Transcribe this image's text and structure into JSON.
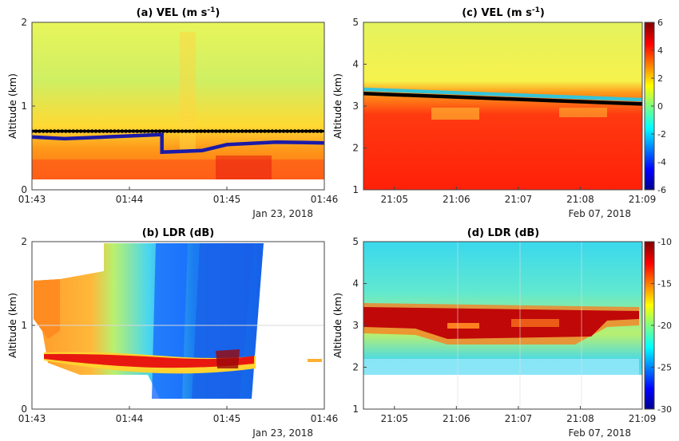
{
  "chart_data": [
    {
      "id": "a",
      "type": "heatmap",
      "title": "(a) VEL (m s",
      "title_sup": "-1",
      "title_close": ")",
      "ylabel": "Altitude (km)",
      "date_label": "Jan 23, 2018",
      "xlim": [
        "01:43",
        "01:46"
      ],
      "ylim": [
        0,
        2
      ],
      "xticks": [
        "01:43",
        "01:44",
        "01:45",
        "01:46"
      ],
      "yticks": [
        "0",
        "1",
        "2"
      ],
      "lines": [
        {
          "color": "#000000",
          "x": [
            "01:43",
            "01:43:30",
            "01:44",
            "01:44:30",
            "01:45",
            "01:45:30",
            "01:46"
          ],
          "y": [
            0.7,
            0.7,
            0.7,
            0.7,
            0.7,
            0.7,
            0.7
          ]
        },
        {
          "color": "#1a1aa8",
          "x": [
            "01:43",
            "01:43:20",
            "01:43:45",
            "01:44:20",
            "01:44:20",
            "01:44:45",
            "01:45",
            "01:45:30",
            "01:46"
          ],
          "y": [
            0.63,
            0.61,
            0.63,
            0.66,
            0.45,
            0.47,
            0.54,
            0.57,
            0.56
          ]
        }
      ]
    },
    {
      "id": "c",
      "type": "heatmap",
      "title": "(c) VEL (m s",
      "title_sup": "-1",
      "title_close": ")",
      "ylabel": "Altitude (km)",
      "date_label": "Feb 07, 2018",
      "xlim": [
        "21:04:30",
        "21:09"
      ],
      "ylim": [
        1,
        5
      ],
      "xticks": [
        "21:05",
        "21:06",
        "21:07",
        "21:08",
        "21:09"
      ],
      "yticks": [
        "1",
        "2",
        "3",
        "4",
        "5"
      ],
      "colorbar": {
        "ticks": [
          "6",
          "4",
          "2",
          "0",
          "-2",
          "-4",
          "-6"
        ],
        "range": [
          -6,
          6
        ]
      },
      "lines": [
        {
          "color": "#35c4d8",
          "x": [
            "21:04:30",
            "21:09"
          ],
          "y": [
            3.4,
            3.15
          ]
        },
        {
          "color": "#000000",
          "x": [
            "21:04:30",
            "21:09"
          ],
          "y": [
            3.3,
            3.05
          ]
        }
      ]
    },
    {
      "id": "b",
      "type": "heatmap",
      "title": "(b) LDR (dB)",
      "ylabel": "Altitude (km)",
      "date_label": "Jan 23, 2018",
      "xlim": [
        "01:43",
        "01:46"
      ],
      "ylim": [
        0,
        2
      ],
      "xticks": [
        "01:43",
        "01:44",
        "01:45",
        "01:46"
      ],
      "yticks": [
        "0",
        "1",
        "2"
      ]
    },
    {
      "id": "d",
      "type": "heatmap",
      "title": "(d) LDR (dB)",
      "ylabel": "Altitude (km)",
      "date_label": "Feb 07, 2018",
      "xlim": [
        "21:04:30",
        "21:09"
      ],
      "ylim": [
        1,
        5
      ],
      "xticks": [
        "21:05",
        "21:06",
        "21:07",
        "21:08",
        "21:09"
      ],
      "yticks": [
        "1",
        "2",
        "3",
        "4",
        "5"
      ],
      "colorbar": {
        "ticks": [
          "-10",
          "-15",
          "-20",
          "-25",
          "-30"
        ],
        "range": [
          -30,
          -10
        ]
      }
    }
  ]
}
